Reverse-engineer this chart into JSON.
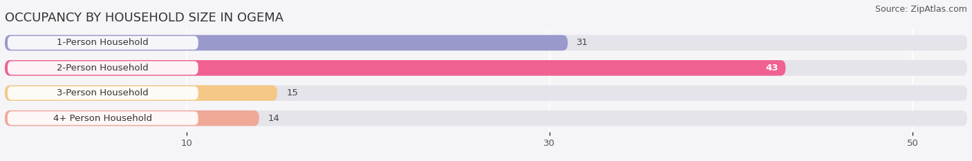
{
  "title": "OCCUPANCY BY HOUSEHOLD SIZE IN OGEMA",
  "source": "Source: ZipAtlas.com",
  "categories": [
    "1-Person Household",
    "2-Person Household",
    "3-Person Household",
    "4+ Person Household"
  ],
  "values": [
    31,
    43,
    15,
    14
  ],
  "bar_colors": [
    "#9999cc",
    "#f06090",
    "#f5c888",
    "#f0a898"
  ],
  "bar_height": 0.62,
  "xlim": [
    0,
    53
  ],
  "xticks": [
    10,
    30,
    50
  ],
  "background_color": "#f5f5f8",
  "bar_bg_color": "#e4e4ea",
  "title_fontsize": 13,
  "source_fontsize": 9,
  "label_fontsize": 9.5,
  "value_fontsize": 9.5,
  "value_color_inside": "white",
  "value_color_outside": "#444444",
  "label_bg_color": "#ffffff",
  "label_text_color": "#333333"
}
